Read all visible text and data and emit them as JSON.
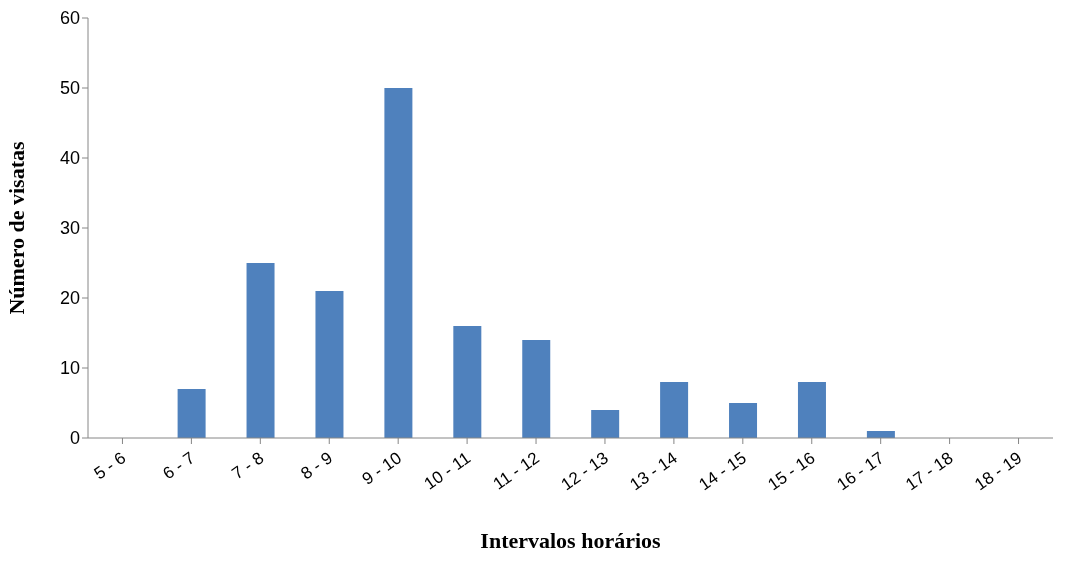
{
  "chart_data": {
    "type": "bar",
    "xlabel": "Intervalos horários",
    "ylabel": "Número de visatas",
    "categories": [
      "5 - 6",
      "6 - 7",
      "7 - 8",
      "8 - 9",
      "9 - 10",
      "10 - 11",
      "11 - 12",
      "12 - 13",
      "13 - 14",
      "14 - 15",
      "15 - 16",
      "16 - 17",
      "17 - 18",
      "18 - 19"
    ],
    "values": [
      0,
      7,
      25,
      21,
      50,
      16,
      14,
      4,
      8,
      5,
      8,
      1,
      0,
      0
    ],
    "color": "#4f81bd",
    "ylim": [
      0,
      60
    ],
    "yticks": [
      0,
      10,
      20,
      30,
      40,
      50,
      60
    ],
    "grid": false,
    "legend": false
  }
}
